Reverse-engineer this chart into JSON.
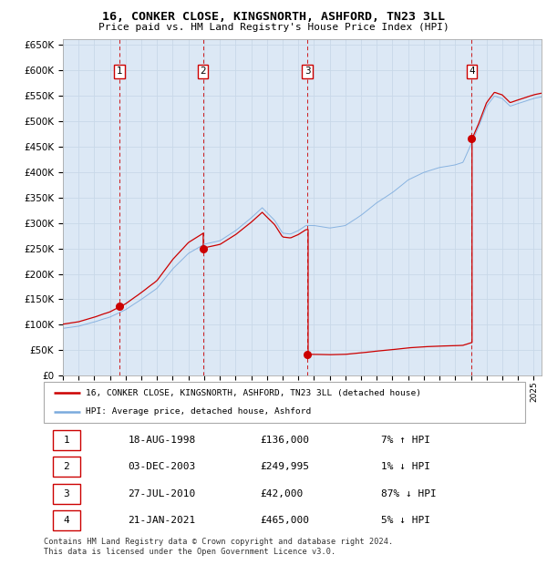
{
  "title": "16, CONKER CLOSE, KINGSNORTH, ASHFORD, TN23 3LL",
  "subtitle": "Price paid vs. HM Land Registry's House Price Index (HPI)",
  "plot_bg_color": "#dce8f5",
  "grid_color": "#c8d8e8",
  "hpi_line_color": "#7aaadd",
  "price_line_color": "#cc0000",
  "marker_color": "#cc0000",
  "vline_color": "#cc0000",
  "transactions_years": [
    1998.622,
    2003.919,
    2010.569,
    2021.055
  ],
  "transactions_prices": [
    136000,
    249995,
    42000,
    465000
  ],
  "legend_entries": [
    "16, CONKER CLOSE, KINGSNORTH, ASHFORD, TN23 3LL (detached house)",
    "HPI: Average price, detached house, Ashford"
  ],
  "table_rows": [
    [
      "1",
      "18-AUG-1998",
      "£136,000",
      "7% ↑ HPI"
    ],
    [
      "2",
      "03-DEC-2003",
      "£249,995",
      "1% ↓ HPI"
    ],
    [
      "3",
      "27-JUL-2010",
      "£42,000",
      "87% ↓ HPI"
    ],
    [
      "4",
      "21-JAN-2021",
      "£465,000",
      "5% ↓ HPI"
    ]
  ],
  "footer": "Contains HM Land Registry data © Crown copyright and database right 2024.\nThis data is licensed under the Open Government Licence v3.0.",
  "ylim": [
    0,
    660000
  ],
  "yticks": [
    0,
    50000,
    100000,
    150000,
    200000,
    250000,
    300000,
    350000,
    400000,
    450000,
    500000,
    550000,
    600000,
    650000
  ],
  "xstart": 1995.0,
  "xend": 2025.5
}
